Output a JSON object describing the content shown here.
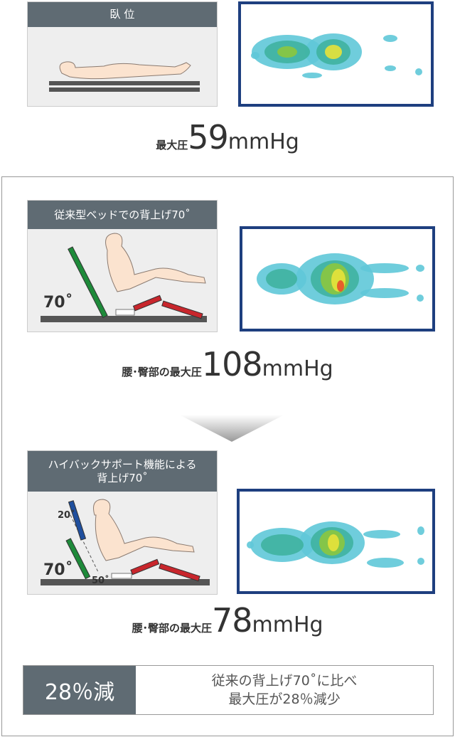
{
  "supine": {
    "header": "臥 位",
    "result": {
      "label": "最大圧",
      "value": "59",
      "unit": "mmHg"
    }
  },
  "conventional": {
    "header": "従来型ベッドでの背上げ70˚",
    "angle": "70˚",
    "result": {
      "label": "腰･臀部の最大圧",
      "value": "108",
      "unit": "mmHg"
    }
  },
  "highback": {
    "header": [
      "ハイバックサポート機能による",
      "背上げ70˚"
    ],
    "angle_top": "20˚",
    "angle": "70˚",
    "angle_bottom": "50˚",
    "result": {
      "label": "腰･臀部の最大圧",
      "value": "78",
      "unit": "mmHg"
    }
  },
  "summary": {
    "badge": "28％減",
    "lines": [
      "従来の背上げ70˚に比べ",
      "最大圧が28％減少"
    ]
  }
}
